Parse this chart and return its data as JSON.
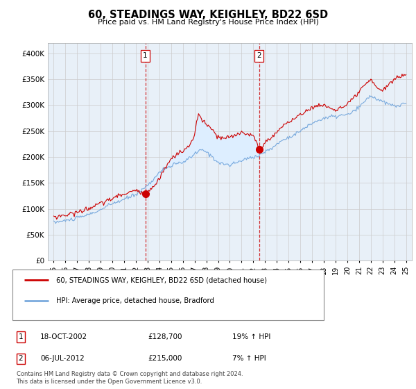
{
  "title": "60, STEADINGS WAY, KEIGHLEY, BD22 6SD",
  "subtitle": "Price paid vs. HM Land Registry's House Price Index (HPI)",
  "legend_line1": "60, STEADINGS WAY, KEIGHLEY, BD22 6SD (detached house)",
  "legend_line2": "HPI: Average price, detached house, Bradford",
  "transaction1_date": "18-OCT-2002",
  "transaction1_price": "£128,700",
  "transaction1_hpi": "19% ↑ HPI",
  "transaction2_date": "06-JUL-2012",
  "transaction2_price": "£215,000",
  "transaction2_hpi": "7% ↑ HPI",
  "footer": "Contains HM Land Registry data © Crown copyright and database right 2024.\nThis data is licensed under the Open Government Licence v3.0.",
  "red_color": "#cc0000",
  "blue_color": "#7aaadd",
  "fill_color": "#ddeeff",
  "marker1_x": 2002.8,
  "marker1_y": 128700,
  "marker2_x": 2012.5,
  "marker2_y": 215000,
  "ylim": [
    0,
    420000
  ],
  "xlim": [
    1994.5,
    2025.5
  ],
  "yticks": [
    0,
    50000,
    100000,
    150000,
    200000,
    250000,
    300000,
    350000,
    400000
  ],
  "ytick_labels": [
    "£0",
    "£50K",
    "£100K",
    "£150K",
    "£200K",
    "£250K",
    "£300K",
    "£350K",
    "£400K"
  ],
  "xticks": [
    1995,
    1996,
    1997,
    1998,
    1999,
    2000,
    2001,
    2002,
    2003,
    2004,
    2005,
    2006,
    2007,
    2008,
    2009,
    2010,
    2011,
    2012,
    2013,
    2014,
    2015,
    2016,
    2017,
    2018,
    2019,
    2020,
    2021,
    2022,
    2023,
    2024,
    2025
  ],
  "bg_color": "#e8f0f8"
}
